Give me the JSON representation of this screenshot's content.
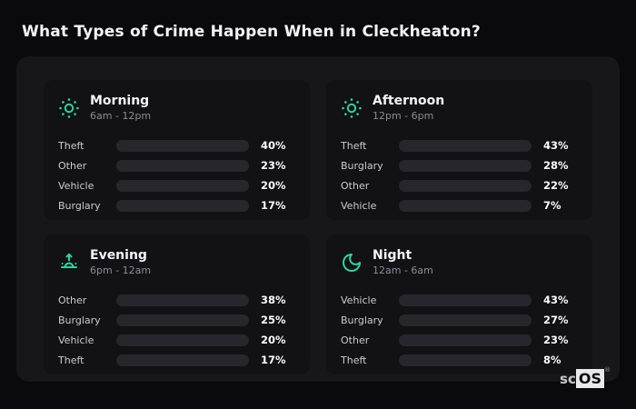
{
  "title": "What Types of Crime Happen When in Cleckheaton?",
  "logo": {
    "prefix": "sc",
    "suffix": "OS",
    "registered": "®"
  },
  "colors": {
    "accent_teal": "#2dd4a0",
    "theft_purple": "#a55ce8",
    "other_slate": "#64748b",
    "vehicle_blue": "#3b82f6",
    "burglary_orange": "#e8750f",
    "page_bg": "#0a0a0e",
    "card_bg": "#16161b",
    "panel_bg": "#111116",
    "track_bg": "#26262c"
  },
  "chart_data": [
    {
      "type": "bar",
      "title": "Morning",
      "time_range": "6am - 12pm",
      "icon": "sun-icon",
      "categories": [
        "Theft",
        "Other",
        "Vehicle",
        "Burglary"
      ],
      "values": [
        40,
        23,
        20,
        17
      ],
      "value_labels": [
        "40%",
        "23%",
        "20%",
        "17%"
      ],
      "bar_colors": [
        "#a55ce8",
        "#64748b",
        "#3b82f6",
        "#e8750f"
      ],
      "xlim": [
        0,
        100
      ],
      "legend": "none",
      "grid": "off"
    },
    {
      "type": "bar",
      "title": "Afternoon",
      "time_range": "12pm - 6pm",
      "icon": "sun-icon",
      "categories": [
        "Theft",
        "Burglary",
        "Other",
        "Vehicle"
      ],
      "values": [
        43,
        28,
        22,
        7
      ],
      "value_labels": [
        "43%",
        "28%",
        "22%",
        "7%"
      ],
      "bar_colors": [
        "#a55ce8",
        "#e8750f",
        "#64748b",
        "#3b82f6"
      ],
      "xlim": [
        0,
        100
      ],
      "legend": "none",
      "grid": "off"
    },
    {
      "type": "bar",
      "title": "Evening",
      "time_range": "6pm - 12am",
      "icon": "sunrise-icon",
      "categories": [
        "Other",
        "Burglary",
        "Vehicle",
        "Theft"
      ],
      "values": [
        38,
        25,
        20,
        17
      ],
      "value_labels": [
        "38%",
        "25%",
        "20%",
        "17%"
      ],
      "bar_colors": [
        "#64748b",
        "#e8750f",
        "#3b82f6",
        "#a55ce8"
      ],
      "xlim": [
        0,
        100
      ],
      "legend": "none",
      "grid": "off"
    },
    {
      "type": "bar",
      "title": "Night",
      "time_range": "12am - 6am",
      "icon": "moon-icon",
      "categories": [
        "Vehicle",
        "Burglary",
        "Other",
        "Theft"
      ],
      "values": [
        43,
        27,
        23,
        8
      ],
      "value_labels": [
        "43%",
        "27%",
        "23%",
        "8%"
      ],
      "bar_colors": [
        "#3b82f6",
        "#e8750f",
        "#64748b",
        "#a55ce8"
      ],
      "xlim": [
        0,
        100
      ],
      "legend": "none",
      "grid": "off"
    }
  ]
}
